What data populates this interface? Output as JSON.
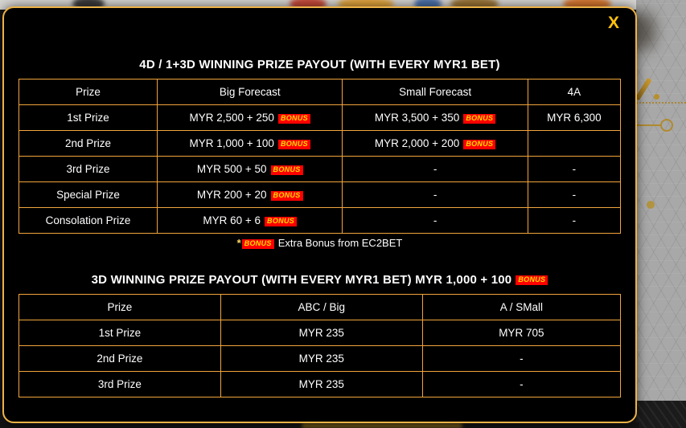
{
  "modal": {
    "close_label": "X",
    "bonus_label": "BONUS",
    "table1": {
      "title": "4D / 1+3D WINNING PRIZE PAYOUT (WITH EVERY MYR1 BET)",
      "headers": [
        "Prize",
        "Big Forecast",
        "Small Forecast",
        "4A"
      ],
      "rows": [
        [
          {
            "text": "1st Prize",
            "bonus": false
          },
          {
            "text": "MYR 2,500 + 250",
            "bonus": true
          },
          {
            "text": "MYR 3,500 + 350",
            "bonus": true
          },
          {
            "text": "MYR 6,300",
            "bonus": false
          }
        ],
        [
          {
            "text": "2nd Prize",
            "bonus": false
          },
          {
            "text": "MYR 1,000 + 100",
            "bonus": true
          },
          {
            "text": "MYR 2,000 + 200",
            "bonus": true
          },
          {
            "text": "",
            "bonus": false
          }
        ],
        [
          {
            "text": "3rd Prize",
            "bonus": false
          },
          {
            "text": "MYR 500 + 50",
            "bonus": true
          },
          {
            "text": "-",
            "bonus": false
          },
          {
            "text": "-",
            "bonus": false
          }
        ],
        [
          {
            "text": "Special Prize",
            "bonus": false
          },
          {
            "text": "MYR 200 + 20",
            "bonus": true
          },
          {
            "text": "-",
            "bonus": false
          },
          {
            "text": "-",
            "bonus": false
          }
        ],
        [
          {
            "text": "Consolation Prize",
            "bonus": false
          },
          {
            "text": "MYR 60 + 6",
            "bonus": true
          },
          {
            "text": "-",
            "bonus": false
          },
          {
            "text": "-",
            "bonus": false
          }
        ]
      ],
      "footnote": {
        "star": "*",
        "text": "Extra Bonus from EC2BET"
      }
    },
    "table2": {
      "title": "3D WINNING PRIZE PAYOUT (WITH EVERY MYR1 BET) MYR 1,000 + 100",
      "headers": [
        "Prize",
        "ABC / Big",
        "A / SMall"
      ],
      "rows": [
        [
          {
            "text": "1st Prize",
            "bonus": false
          },
          {
            "text": "MYR 235",
            "bonus": false
          },
          {
            "text": "MYR 705",
            "bonus": false
          }
        ],
        [
          {
            "text": "2nd Prize",
            "bonus": false
          },
          {
            "text": "MYR 235",
            "bonus": false
          },
          {
            "text": "-",
            "bonus": false
          }
        ],
        [
          {
            "text": "3rd Prize",
            "bonus": false
          },
          {
            "text": "MYR 235",
            "bonus": false
          },
          {
            "text": "-",
            "bonus": false
          }
        ]
      ]
    }
  },
  "colors": {
    "modal_background": "#000000",
    "modal_border": "#edb347",
    "table_border": "#f2a53c",
    "bonus_background": "#ff0000",
    "bonus_text": "#ffdf00",
    "close_button": "#ffc20e",
    "text": "#ffffff"
  }
}
